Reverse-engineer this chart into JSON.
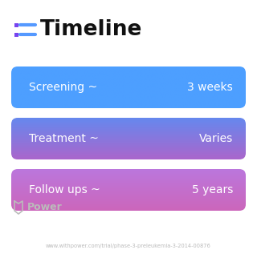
{
  "title": "Timeline",
  "title_fontsize": 19,
  "title_fontweight": "bold",
  "title_color": "#111111",
  "icon_dot_color": "#7744ee",
  "icon_line_color": "#5599ff",
  "background_color": "#ffffff",
  "rows": [
    {
      "label": "Screening ~",
      "value": "3 weeks",
      "color_top": "#4d9fff",
      "color_bottom": "#4d9fff"
    },
    {
      "label": "Treatment ~",
      "value": "Varies",
      "color_top": "#6688ee",
      "color_bottom": "#aa66cc"
    },
    {
      "label": "Follow ups ~",
      "value": "5 years",
      "color_top": "#bb77dd",
      "color_bottom": "#cc66bb"
    }
  ],
  "row_text_color": "#ffffff",
  "row_label_fontsize": 10,
  "row_value_fontsize": 10,
  "watermark_text": "Power",
  "watermark_color": "#bbbbbb",
  "url_text": "www.withpower.com/trial/phase-3-preleukemia-3-2014-00876",
  "url_color": "#bbbbbb",
  "url_fontsize": 4.8
}
